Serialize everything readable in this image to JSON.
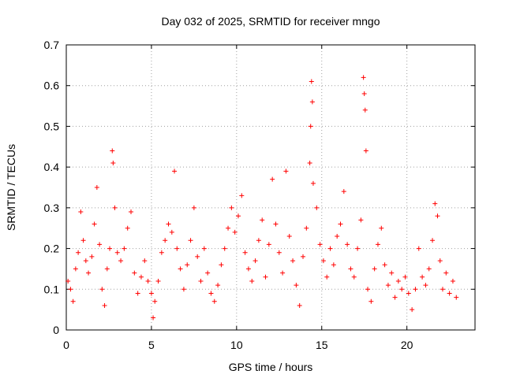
{
  "chart_data": {
    "type": "scatter",
    "title": "Day 032 of 2025, SRMTID for receiver mngo",
    "xlabel": "GPS time / hours",
    "ylabel": "SRMTID / TECUs",
    "xlim": [
      0,
      24
    ],
    "ylim": [
      0,
      0.7
    ],
    "xticks": [
      0,
      5,
      10,
      15,
      20
    ],
    "xtick_labels": [
      "0",
      "5",
      "10",
      "15",
      "20"
    ],
    "yticks": [
      0,
      0.1,
      0.2,
      0.3,
      0.4,
      0.5,
      0.6,
      0.7
    ],
    "ytick_labels": [
      "0",
      "0.1",
      "0.2",
      "0.3",
      "0.4",
      "0.5",
      "0.6",
      "0.7"
    ],
    "grid": true,
    "marker": "plus",
    "color": "#ff0000",
    "series": [
      {
        "name": "SRMTID",
        "points": [
          [
            0.1,
            0.12
          ],
          [
            0.25,
            0.1
          ],
          [
            0.4,
            0.07
          ],
          [
            0.55,
            0.15
          ],
          [
            0.7,
            0.19
          ],
          [
            0.85,
            0.29
          ],
          [
            1.0,
            0.22
          ],
          [
            1.15,
            0.17
          ],
          [
            1.3,
            0.14
          ],
          [
            1.5,
            0.18
          ],
          [
            1.65,
            0.26
          ],
          [
            1.8,
            0.35
          ],
          [
            1.95,
            0.21
          ],
          [
            2.1,
            0.1
          ],
          [
            2.25,
            0.06
          ],
          [
            2.4,
            0.15
          ],
          [
            2.55,
            0.2
          ],
          [
            2.7,
            0.44
          ],
          [
            2.75,
            0.41
          ],
          [
            2.85,
            0.3
          ],
          [
            3.0,
            0.19
          ],
          [
            3.2,
            0.17
          ],
          [
            3.4,
            0.2
          ],
          [
            3.6,
            0.25
          ],
          [
            3.8,
            0.29
          ],
          [
            4.0,
            0.14
          ],
          [
            4.2,
            0.09
          ],
          [
            4.4,
            0.13
          ],
          [
            4.6,
            0.17
          ],
          [
            4.8,
            0.12
          ],
          [
            5.0,
            0.09
          ],
          [
            5.1,
            0.03
          ],
          [
            5.2,
            0.07
          ],
          [
            5.4,
            0.12
          ],
          [
            5.6,
            0.19
          ],
          [
            5.8,
            0.22
          ],
          [
            6.0,
            0.26
          ],
          [
            6.2,
            0.24
          ],
          [
            6.35,
            0.39
          ],
          [
            6.5,
            0.2
          ],
          [
            6.7,
            0.15
          ],
          [
            6.9,
            0.1
          ],
          [
            7.1,
            0.16
          ],
          [
            7.3,
            0.22
          ],
          [
            7.5,
            0.3
          ],
          [
            7.7,
            0.18
          ],
          [
            7.9,
            0.12
          ],
          [
            8.1,
            0.2
          ],
          [
            8.3,
            0.14
          ],
          [
            8.5,
            0.09
          ],
          [
            8.7,
            0.07
          ],
          [
            8.9,
            0.11
          ],
          [
            9.1,
            0.16
          ],
          [
            9.3,
            0.2
          ],
          [
            9.5,
            0.25
          ],
          [
            9.7,
            0.3
          ],
          [
            9.9,
            0.24
          ],
          [
            10.1,
            0.28
          ],
          [
            10.3,
            0.33
          ],
          [
            10.5,
            0.19
          ],
          [
            10.7,
            0.15
          ],
          [
            10.9,
            0.12
          ],
          [
            11.1,
            0.17
          ],
          [
            11.3,
            0.22
          ],
          [
            11.5,
            0.27
          ],
          [
            11.7,
            0.13
          ],
          [
            11.9,
            0.21
          ],
          [
            12.1,
            0.37
          ],
          [
            12.3,
            0.26
          ],
          [
            12.5,
            0.19
          ],
          [
            12.7,
            0.14
          ],
          [
            12.9,
            0.39
          ],
          [
            13.1,
            0.23
          ],
          [
            13.3,
            0.17
          ],
          [
            13.5,
            0.11
          ],
          [
            13.7,
            0.06
          ],
          [
            13.9,
            0.18
          ],
          [
            14.1,
            0.25
          ],
          [
            14.3,
            0.41
          ],
          [
            14.35,
            0.5
          ],
          [
            14.4,
            0.61
          ],
          [
            14.45,
            0.56
          ],
          [
            14.5,
            0.36
          ],
          [
            14.7,
            0.3
          ],
          [
            14.9,
            0.21
          ],
          [
            15.1,
            0.17
          ],
          [
            15.3,
            0.13
          ],
          [
            15.5,
            0.2
          ],
          [
            15.7,
            0.16
          ],
          [
            15.9,
            0.23
          ],
          [
            16.1,
            0.26
          ],
          [
            16.3,
            0.34
          ],
          [
            16.5,
            0.21
          ],
          [
            16.7,
            0.15
          ],
          [
            16.9,
            0.13
          ],
          [
            17.1,
            0.2
          ],
          [
            17.3,
            0.27
          ],
          [
            17.45,
            0.62
          ],
          [
            17.5,
            0.58
          ],
          [
            17.55,
            0.54
          ],
          [
            17.6,
            0.44
          ],
          [
            17.7,
            0.1
          ],
          [
            17.9,
            0.07
          ],
          [
            18.1,
            0.15
          ],
          [
            18.3,
            0.21
          ],
          [
            18.5,
            0.25
          ],
          [
            18.7,
            0.16
          ],
          [
            18.9,
            0.11
          ],
          [
            19.1,
            0.14
          ],
          [
            19.3,
            0.08
          ],
          [
            19.5,
            0.12
          ],
          [
            19.7,
            0.1
          ],
          [
            19.9,
            0.13
          ],
          [
            20.1,
            0.09
          ],
          [
            20.3,
            0.05
          ],
          [
            20.5,
            0.1
          ],
          [
            20.7,
            0.2
          ],
          [
            20.9,
            0.13
          ],
          [
            21.1,
            0.11
          ],
          [
            21.3,
            0.15
          ],
          [
            21.5,
            0.22
          ],
          [
            21.65,
            0.31
          ],
          [
            21.8,
            0.28
          ],
          [
            21.95,
            0.17
          ],
          [
            22.1,
            0.1
          ],
          [
            22.3,
            0.14
          ],
          [
            22.5,
            0.09
          ],
          [
            22.7,
            0.12
          ],
          [
            22.9,
            0.08
          ]
        ]
      }
    ]
  }
}
